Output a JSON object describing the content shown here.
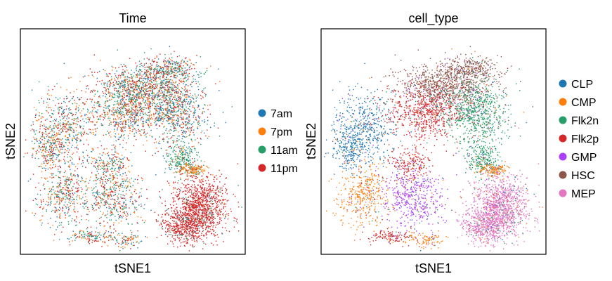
{
  "chart_data": [
    {
      "type": "scatter",
      "title": "Time",
      "xlabel": "tSNE1",
      "ylabel": "tSNE2",
      "legend_placement": "right",
      "series": [
        {
          "name": "7am",
          "color": "#1f77b4"
        },
        {
          "name": "7pm",
          "color": "#ff7f0e"
        },
        {
          "name": "11am",
          "color": "#279e68"
        },
        {
          "name": "11pm",
          "color": "#d62728"
        }
      ]
    },
    {
      "type": "scatter",
      "title": "cell_type",
      "xlabel": "tSNE1",
      "ylabel": "tSNE2",
      "legend_placement": "right",
      "series": [
        {
          "name": "CLP",
          "color": "#1f77b4"
        },
        {
          "name": "CMP",
          "color": "#ff7f0e"
        },
        {
          "name": "Flk2n",
          "color": "#279e68"
        },
        {
          "name": "Flk2p",
          "color": "#d62728"
        },
        {
          "name": "GMP",
          "color": "#aa40fc"
        },
        {
          "name": "HSC",
          "color": "#8c564b"
        },
        {
          "name": "MEP",
          "color": "#e377c2"
        }
      ]
    }
  ]
}
